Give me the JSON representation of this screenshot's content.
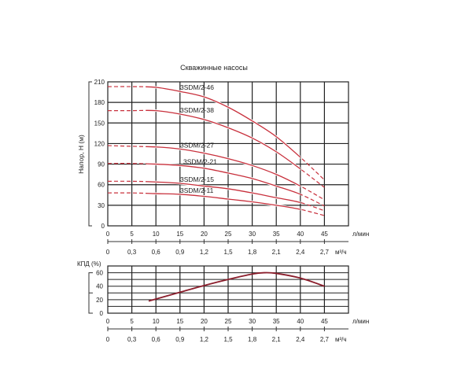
{
  "chart_data": [
    {
      "type": "line",
      "title": "Скважинные насосы",
      "ylabel": "Напор, H (м)",
      "xlabel": "л/мин",
      "x2label": "м³/ч",
      "xlim": [
        0,
        50
      ],
      "ylim": [
        0,
        210
      ],
      "x_ticks": [
        "0",
        "5",
        "10",
        "15",
        "20",
        "25",
        "30",
        "35",
        "40",
        "45"
      ],
      "x2_ticks": [
        "0",
        "0,3",
        "0,6",
        "0,9",
        "1,2",
        "1,5",
        "1,8",
        "2,1",
        "2,4",
        "2,7"
      ],
      "y_ticks": [
        "0",
        "30",
        "60",
        "90",
        "120",
        "150",
        "180",
        "210"
      ],
      "grid": true,
      "x": [
        0,
        5,
        10,
        15,
        20,
        25,
        30,
        35,
        40,
        45
      ],
      "solid_range": [
        8,
        40
      ],
      "color": "#c8303c",
      "series": [
        {
          "name": "3SDM/2-46",
          "values": [
            203,
            203,
            202,
            196,
            188,
            173,
            153,
            130,
            100,
            67
          ]
        },
        {
          "name": "3SDM/2-38",
          "values": [
            168,
            168,
            168,
            163,
            155,
            143,
            128,
            108,
            83,
            56
          ]
        },
        {
          "name": "3SDM/2-27",
          "values": [
            117,
            116,
            115,
            112,
            106,
            98,
            88,
            75,
            58,
            38
          ]
        },
        {
          "name": "3SDM/2-21",
          "values": [
            91,
            91,
            90,
            88,
            84,
            77,
            69,
            58,
            46,
            29
          ]
        },
        {
          "name": "3SDM/2-15",
          "values": [
            65,
            65,
            64,
            62,
            58,
            54,
            48,
            41,
            34,
            22
          ]
        },
        {
          "name": "3SDM/2-11",
          "values": [
            48,
            48,
            47,
            46,
            43,
            39,
            35,
            30,
            24,
            15
          ]
        }
      ]
    },
    {
      "type": "line",
      "ylabel": "КПД  (%)",
      "xlabel": "л/мин",
      "x2label": "м³/ч",
      "xlim": [
        0,
        50
      ],
      "ylim": [
        0,
        70
      ],
      "x_ticks": [
        "0",
        "5",
        "10",
        "15",
        "20",
        "25",
        "30",
        "35",
        "40",
        "45"
      ],
      "x2_ticks": [
        "0",
        "0,3",
        "0,6",
        "0,9",
        "1,2",
        "1,5",
        "1,8",
        "2,1",
        "2,4",
        "2,7"
      ],
      "y_ticks": [
        "0",
        "20",
        "40",
        "60"
      ],
      "grid": true,
      "color": "#8b1e2c",
      "series": [
        {
          "x": [
            8.5,
            10,
            15,
            20,
            25,
            30,
            32.5,
            35,
            40,
            45
          ],
          "values": [
            18,
            21,
            31,
            41,
            50,
            58,
            60,
            59,
            52,
            40
          ]
        }
      ]
    }
  ]
}
